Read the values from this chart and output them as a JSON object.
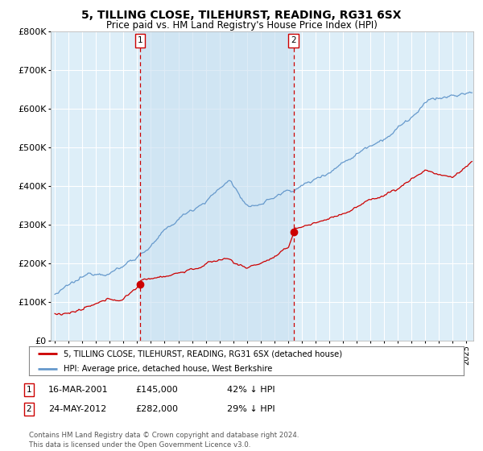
{
  "title": "5, TILLING CLOSE, TILEHURST, READING, RG31 6SX",
  "subtitle": "Price paid vs. HM Land Registry's House Price Index (HPI)",
  "ylim": [
    0,
    800000
  ],
  "xlim_start": 1994.7,
  "xlim_end": 2025.5,
  "background_color": "#ffffff",
  "plot_bg_color": "#ddeef8",
  "grid_color": "#ffffff",
  "shade_color": "#c8dff0",
  "title_fontsize": 10,
  "subtitle_fontsize": 8.5,
  "point1_x": 2001.21,
  "point1_y": 145000,
  "point1_label": "16-MAR-2001",
  "point1_price": "£145,000",
  "point1_hpi": "42% ↓ HPI",
  "point2_x": 2012.39,
  "point2_y": 282000,
  "point2_label": "24-MAY-2012",
  "point2_price": "£282,000",
  "point2_hpi": "29% ↓ HPI",
  "legend_label_red": "5, TILLING CLOSE, TILEHURST, READING, RG31 6SX (detached house)",
  "legend_label_blue": "HPI: Average price, detached house, West Berkshire",
  "footer_text": "Contains HM Land Registry data © Crown copyright and database right 2024.\nThis data is licensed under the Open Government Licence v3.0.",
  "red_color": "#cc0000",
  "blue_color": "#6699cc"
}
